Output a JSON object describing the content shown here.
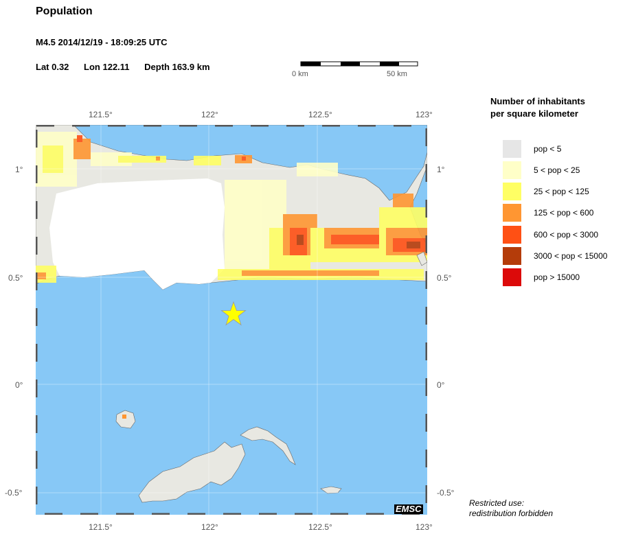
{
  "header": {
    "title": "Population",
    "event": "M4.5  2014/12/19 - 18:09:25 UTC",
    "lat": "Lat  0.32",
    "lon": "Lon 122.11",
    "depth": "Depth 163.9 km"
  },
  "scale_bar": {
    "left_label": "0 km",
    "right_label": "50 km"
  },
  "map": {
    "lon_ticks": [
      "121.5°",
      "122°",
      "122.5°",
      "123°"
    ],
    "lat_ticks": [
      "1°",
      "0.5°",
      "0°",
      "-0.5°"
    ],
    "epicenter_marker": "star-icon",
    "badge": "EMSC",
    "colors": {
      "sea": "#87c8f6",
      "land": "#e8e8e2",
      "marker": "#ffff00"
    }
  },
  "legend": {
    "title_line1": "Number of inhabitants",
    "title_line2": "per square kilometer",
    "items": [
      {
        "label": "pop < 5",
        "color": "#e6e6e6"
      },
      {
        "label": "5 < pop < 25",
        "color": "#ffffc8"
      },
      {
        "label": "25 < pop < 125",
        "color": "#ffff64"
      },
      {
        "label": "125 < pop < 600",
        "color": "#ff9632"
      },
      {
        "label": "600 < pop < 3000",
        "color": "#ff5014"
      },
      {
        "label": "3000 < pop < 15000",
        "color": "#b43c0a"
      },
      {
        "label": "pop > 15000",
        "color": "#dc0a0a"
      }
    ]
  },
  "footer": {
    "line1": "Restricted use:",
    "line2": "redistribution forbidden"
  }
}
